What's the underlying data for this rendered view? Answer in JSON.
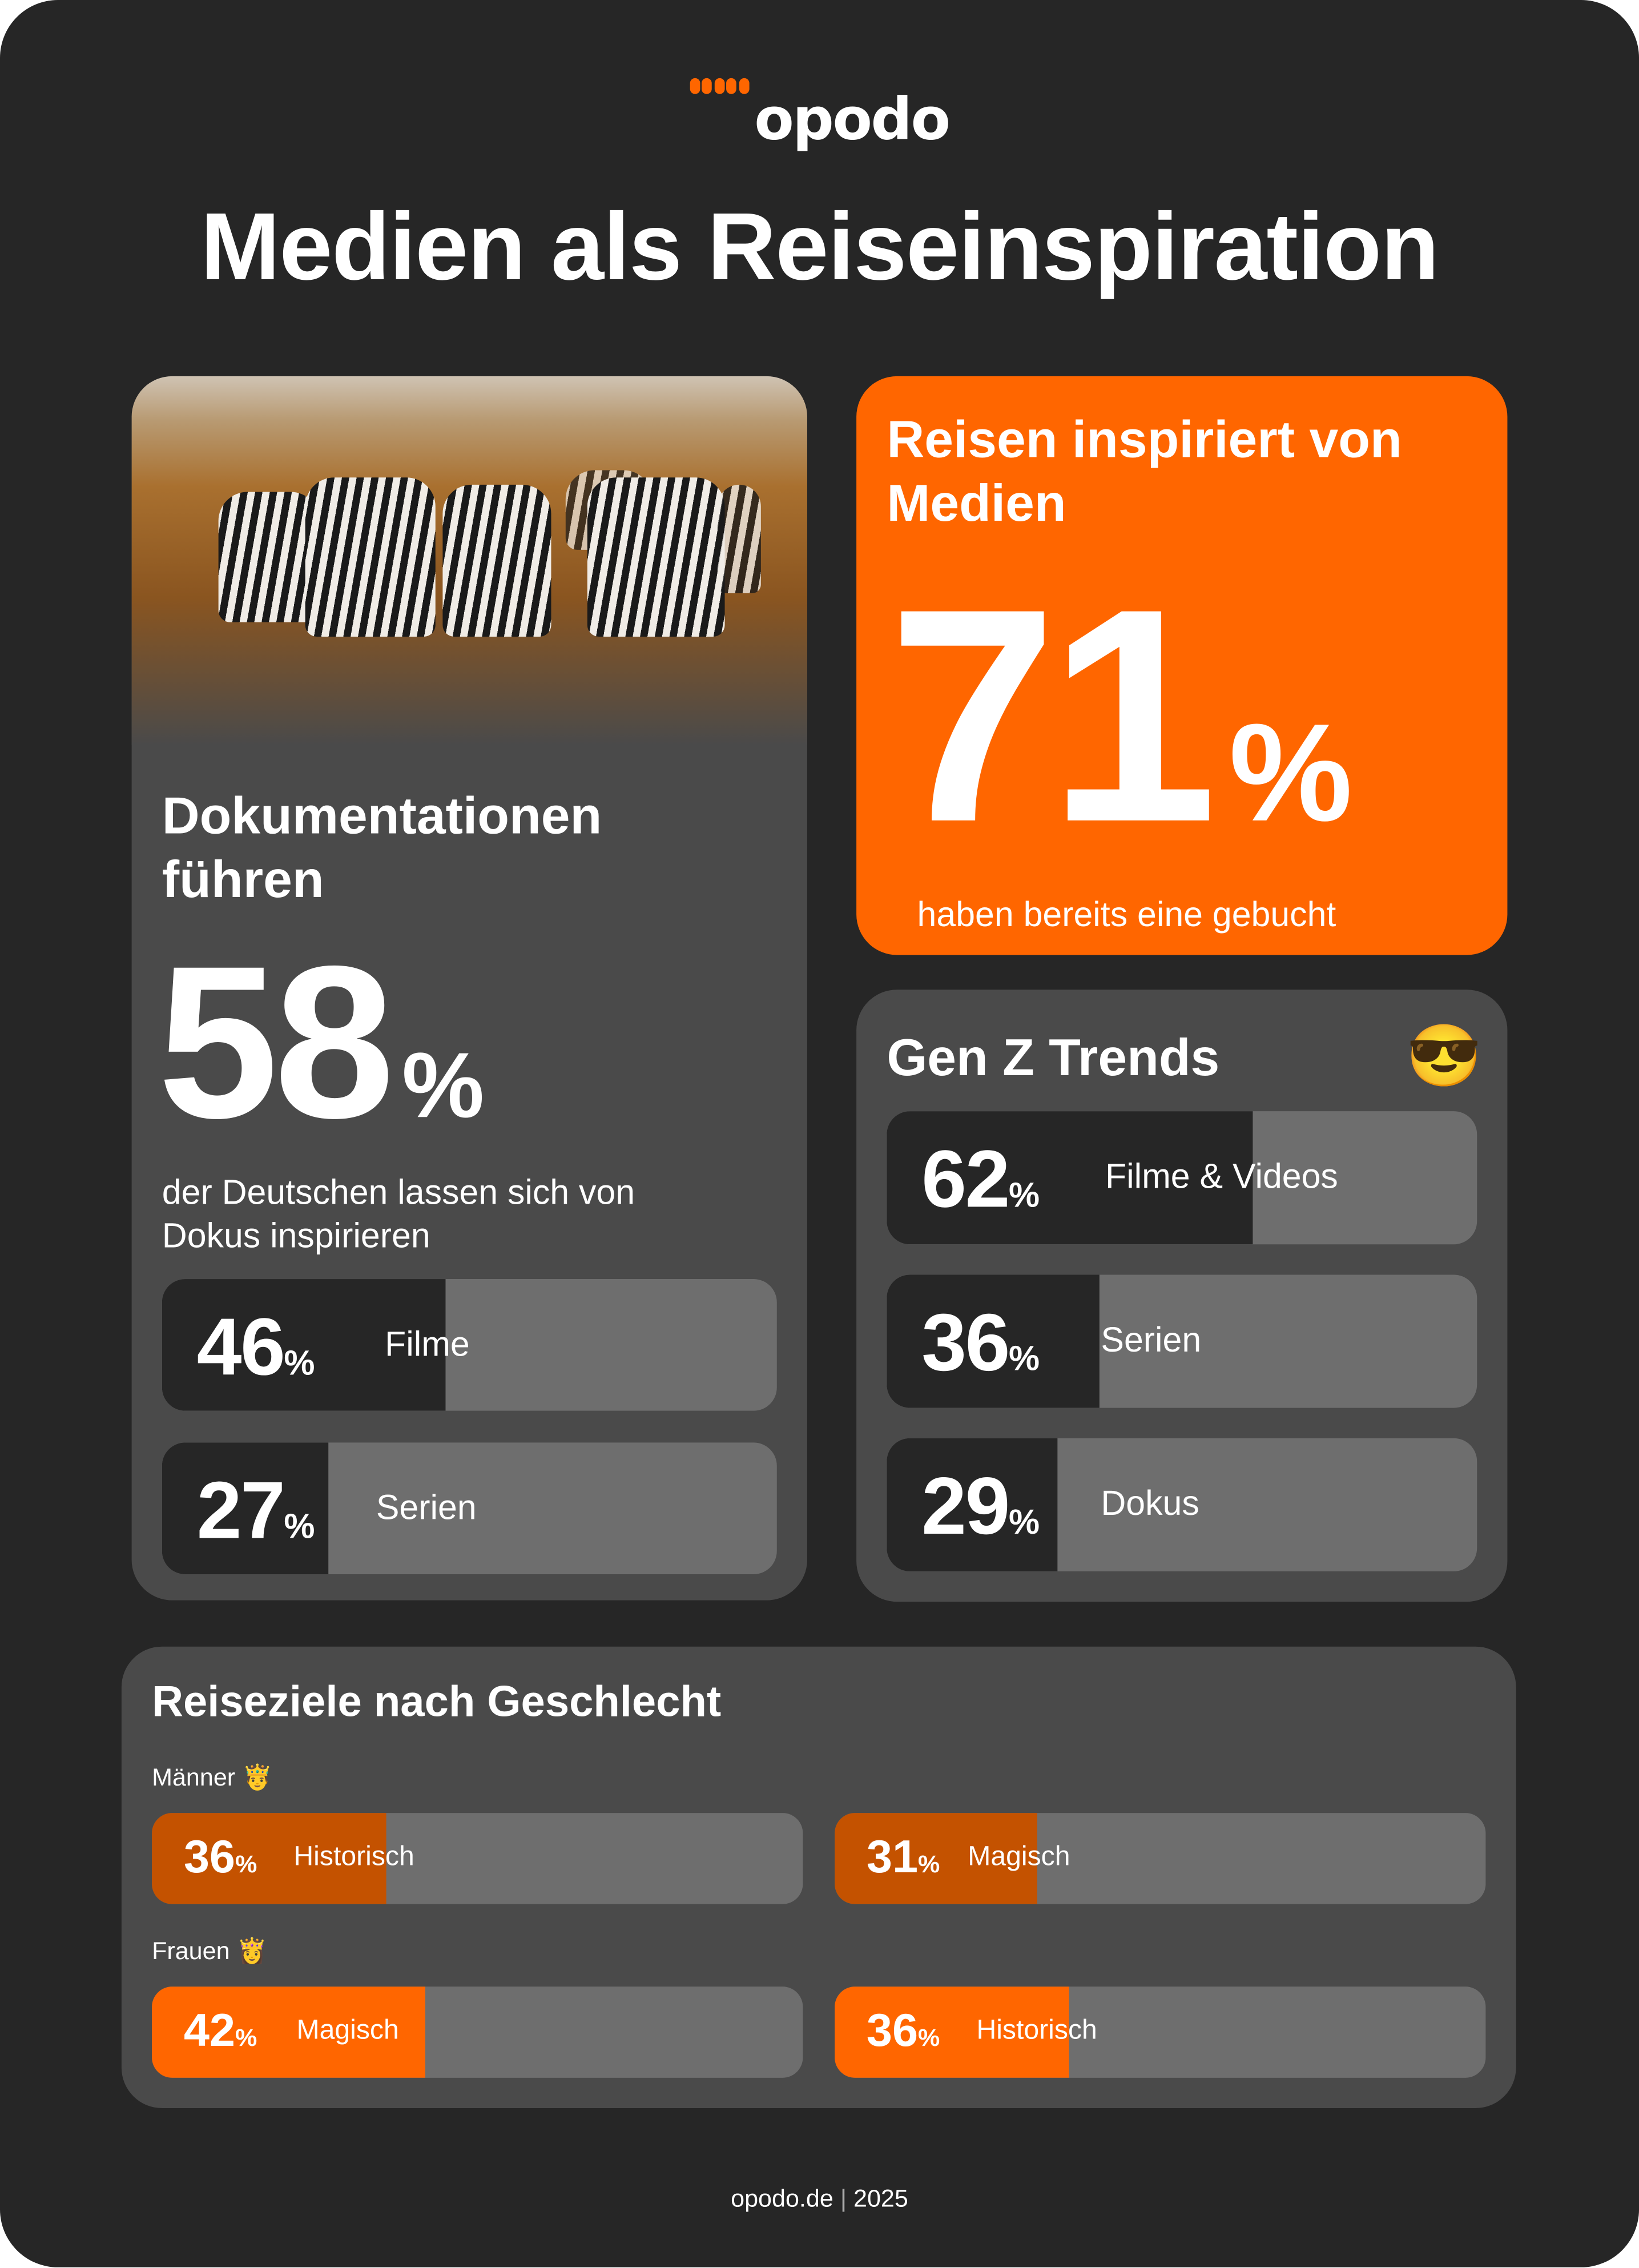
{
  "brand": {
    "logo_text": "opodo",
    "accent": "#FF6600",
    "accent_dark": "#C45200"
  },
  "title": "Medien als Reiseinspiration",
  "docs_card": {
    "heading_line1": "Dokumentationen",
    "heading_line2": "führen",
    "value": "58",
    "unit": "%",
    "text_line1": "der Deutschen lassen sich von",
    "text_line2": "Dokus inspirieren",
    "bars": [
      {
        "value": "46",
        "unit": "%",
        "label": "Filme",
        "percent": 46
      },
      {
        "value": "27",
        "unit": "%",
        "label": "Serien",
        "percent": 27
      }
    ]
  },
  "media_card": {
    "heading_line1": "Reisen inspiriert von",
    "heading_line2": "Medien",
    "value": "71",
    "unit": "%",
    "text": "haben bereits eine gebucht"
  },
  "genz_card": {
    "title": "Gen Z Trends",
    "emoji": "😎",
    "bars": [
      {
        "value": "62",
        "unit": "%",
        "label": "Filme & Videos",
        "percent": 62
      },
      {
        "value": "36",
        "unit": "%",
        "label": "Serien",
        "percent": 36
      },
      {
        "value": "29",
        "unit": "%",
        "label": "Dokus",
        "percent": 29
      }
    ]
  },
  "gender_card": {
    "title": "Reiseziele nach Geschlecht",
    "men": {
      "label": "Männer",
      "emoji": "🤴",
      "bars": [
        {
          "value": "36",
          "unit": "%",
          "label": "Historisch",
          "percent": 36
        },
        {
          "value": "31",
          "unit": "%",
          "label": "Magisch",
          "percent": 31
        }
      ]
    },
    "women": {
      "label": "Frauen",
      "emoji": "👸",
      "bars": [
        {
          "value": "42",
          "unit": "%",
          "label": "Magisch",
          "percent": 42
        },
        {
          "value": "36",
          "unit": "%",
          "label": "Historisch",
          "percent": 36
        }
      ]
    }
  },
  "footer": {
    "site": "opodo.de",
    "year": "2025"
  }
}
